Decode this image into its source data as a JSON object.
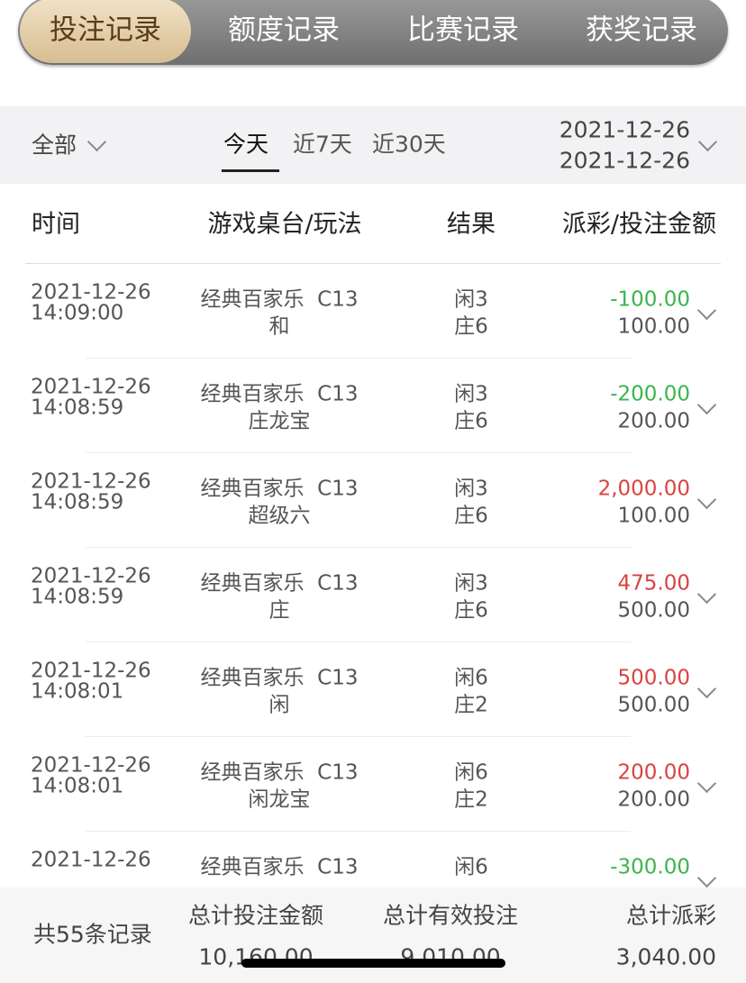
{
  "tabs": [
    "投注记录",
    "额度记录",
    "比赛记录",
    "获奖记录"
  ],
  "filter": {
    "type": "全部",
    "periods": [
      "今天",
      "近7天",
      "近30天"
    ],
    "date_start": "2021-12-26",
    "date_end": "2021-12-26"
  },
  "table": {
    "headers": [
      "时间",
      "游戏桌台/玩法",
      "结果",
      "派彩/投注金额"
    ],
    "rows": [
      {
        "date": "2021-12-26",
        "time": "14:09:00",
        "game": "经典百家乐  C13",
        "bet": "和",
        "result": [
          "闲3",
          "庄6"
        ],
        "payout": "-100.00",
        "amount": "100.00"
      },
      {
        "date": "2021-12-26",
        "time": "14:08:59",
        "game": "经典百家乐  C13",
        "bet": "庄龙宝",
        "result": [
          "闲3",
          "庄6"
        ],
        "payout": "-200.00",
        "amount": "200.00"
      },
      {
        "date": "2021-12-26",
        "time": "14:08:59",
        "game": "经典百家乐  C13",
        "bet": "超级六",
        "result": [
          "闲3",
          "庄6"
        ],
        "payout": "2,000.00",
        "amount": "100.00"
      },
      {
        "date": "2021-12-26",
        "time": "14:08:59",
        "game": "经典百家乐  C13",
        "bet": "庄",
        "result": [
          "闲3",
          "庄6"
        ],
        "payout": "475.00",
        "amount": "500.00"
      },
      {
        "date": "2021-12-26",
        "time": "14:08:01",
        "game": "经典百家乐  C13",
        "bet": "闲",
        "result": [
          "闲6",
          "庄2"
        ],
        "payout": "500.00",
        "amount": "500.00"
      },
      {
        "date": "2021-12-26",
        "time": "14:08:01",
        "game": "经典百家乐  C13",
        "bet": "闲龙宝",
        "result": [
          "闲6",
          "庄2"
        ],
        "payout": "200.00",
        "amount": "200.00"
      },
      {
        "date": "2021-12-26",
        "game": "经典百家乐  C13",
        "result": [
          "闲6"
        ],
        "payout": "-300.00"
      }
    ]
  },
  "summary": {
    "count": "共55条记录",
    "labels": [
      "总计投注金额",
      "总计有效投注",
      "总计派彩"
    ],
    "values": [
      "10,160.00",
      "9,010.00",
      "3,040.00"
    ]
  }
}
